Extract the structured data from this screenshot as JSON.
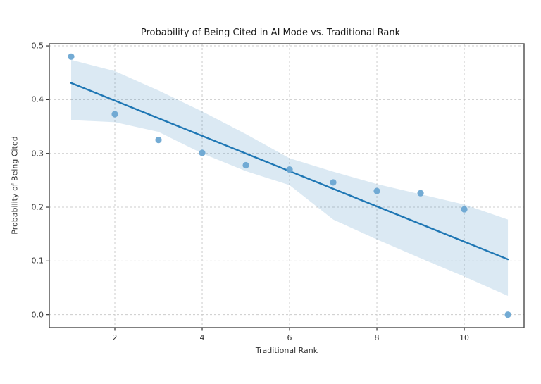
{
  "figure": {
    "title": "Probability of Being Cited in AI Mode vs. Traditional Rank",
    "xlabel": "Traditional Rank",
    "ylabel": "Probability of Being Cited"
  },
  "chart_data": {
    "type": "scatter",
    "title": "Probability of Being Cited in AI Mode vs. Traditional Rank",
    "xlabel": "Traditional Rank",
    "ylabel": "Probability of Being Cited",
    "series": [
      {
        "name": "observed-probability-points",
        "type": "scatter",
        "x": [
          1,
          2,
          3,
          4,
          5,
          6,
          7,
          8,
          9,
          10,
          11
        ],
        "y": [
          0.48,
          0.373,
          0.325,
          0.301,
          0.278,
          0.27,
          0.246,
          0.23,
          0.226,
          0.196,
          0.0
        ]
      },
      {
        "name": "linear-regression-fit",
        "type": "line",
        "x": [
          1,
          11
        ],
        "y": [
          0.431,
          0.103
        ]
      },
      {
        "name": "confidence-band",
        "type": "area",
        "x": [
          1,
          2,
          3,
          4,
          5,
          6,
          7,
          8,
          9,
          10,
          11
        ],
        "upper": [
          0.474,
          0.453,
          0.417,
          0.378,
          0.336,
          0.291,
          0.266,
          0.243,
          0.224,
          0.205,
          0.177
        ],
        "lower": [
          0.362,
          0.358,
          0.34,
          0.3,
          0.267,
          0.241,
          0.177,
          0.14,
          0.105,
          0.071,
          0.035
        ]
      }
    ],
    "xlim": [
      0.5,
      11.37
    ],
    "ylim": [
      -0.024,
      0.504
    ],
    "xtick_pos": [
      2,
      4,
      6,
      8,
      10
    ],
    "xtick_labels": [
      "2",
      "4",
      "6",
      "8",
      "10"
    ],
    "ytick_pos": [
      0.0,
      0.1,
      0.2,
      0.3,
      0.4,
      0.5
    ],
    "ytick_labels": [
      "0.0",
      "0.1",
      "0.2",
      "0.3",
      "0.4",
      "0.5"
    ],
    "grid": true,
    "grid_style": "dashed",
    "legend": "none",
    "colors": {
      "scatter": "#6ca6d2",
      "line": "#1f77b4",
      "band_fill": "#1f77b4",
      "band_opacity": "0.16",
      "grid": "#cccccc",
      "spine": "#4a4a4a",
      "tick": "#333333",
      "title_text": "#1a1a1a",
      "label_text": "#333333",
      "background": "#ffffff"
    }
  }
}
